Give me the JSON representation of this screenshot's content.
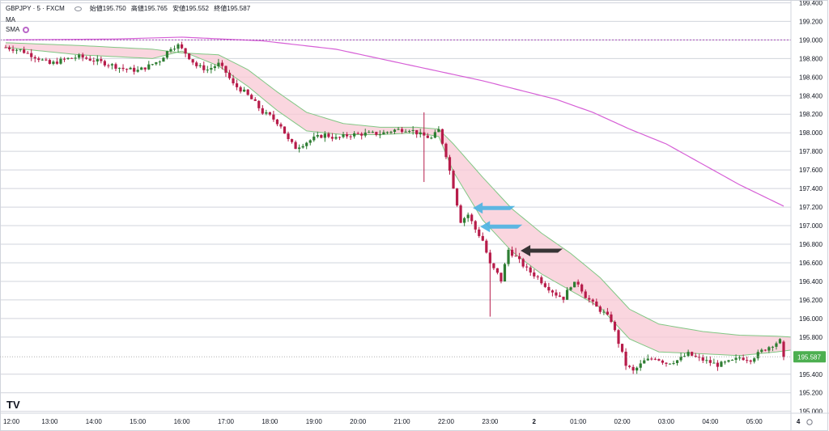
{
  "legend": {
    "symbol": "GBPJPY · 5 · FXCM",
    "open": "始値195.750",
    "high": "高値195.765",
    "low": "安値195.552",
    "close": "終値195.587",
    "indicator_ma": "MA",
    "indicator_sma": "SMA"
  },
  "price_axis": {
    "labels": [
      "199.400",
      "199.200",
      "199.000",
      "198.800",
      "198.600",
      "198.400",
      "198.200",
      "198.000",
      "197.800",
      "197.600",
      "197.400",
      "197.200",
      "197.000",
      "196.800",
      "196.600",
      "196.400",
      "196.200",
      "196.000",
      "195.800",
      "195.400",
      "195.200",
      "195.000"
    ],
    "current_price": "195.587",
    "current_price_color": "#4caf50"
  },
  "time_axis": {
    "labels": [
      "12:00",
      "13:00",
      "14:00",
      "15:00",
      "16:00",
      "17:00",
      "18:00",
      "19:00",
      "20:00",
      "21:00",
      "22:00",
      "23:00",
      "2",
      "01:00",
      "02:00",
      "03:00",
      "04:00",
      "05:00",
      "4"
    ]
  },
  "logo": "TV",
  "colors": {
    "bull": "#2e7d32",
    "bear": "#b71c4a",
    "ma_band": "#f8c8d4",
    "ma_edge": "#81c784",
    "sma_long": "#d65fd6",
    "reference_line": "#9c27b0",
    "arrow_blue": "#4ab3e2",
    "arrow_black": "#222222"
  },
  "annotations": [
    {
      "type": "arrow",
      "color": "blue",
      "pointing": "left",
      "at_price": 197.19
    },
    {
      "type": "arrow",
      "color": "blue",
      "pointing": "left",
      "at_price": 196.99
    },
    {
      "type": "arrow",
      "color": "black",
      "pointing": "left",
      "at_price": 196.73
    }
  ],
  "chart_data": {
    "type": "candlestick",
    "symbol": "GBPJPY",
    "timeframe": "5",
    "y_range": [
      194.98,
      199.43
    ],
    "reference_line": 199.0,
    "x_ticks": [
      {
        "label": "12:00",
        "bar": 0
      },
      {
        "label": "13:00",
        "bar": 12
      },
      {
        "label": "14:00",
        "bar": 24
      },
      {
        "label": "15:00",
        "bar": 36
      },
      {
        "label": "16:00",
        "bar": 48
      },
      {
        "label": "17:00",
        "bar": 60
      },
      {
        "label": "18:00",
        "bar": 72
      },
      {
        "label": "19:00",
        "bar": 84
      },
      {
        "label": "20:00",
        "bar": 96
      },
      {
        "label": "21:00",
        "bar": 108
      },
      {
        "label": "22:00",
        "bar": 120
      },
      {
        "label": "23:00",
        "bar": 132
      },
      {
        "label": "2",
        "bar": 144
      },
      {
        "label": "01:00",
        "bar": 156
      },
      {
        "label": "02:00",
        "bar": 168
      },
      {
        "label": "03:00",
        "bar": 180
      },
      {
        "label": "04:00",
        "bar": 192
      },
      {
        "label": "05:00",
        "bar": 204
      },
      {
        "label": "4",
        "bar": 216
      }
    ],
    "close_anchors": [
      [
        0,
        198.92
      ],
      [
        4,
        198.89
      ],
      [
        8,
        198.82
      ],
      [
        12,
        198.74
      ],
      [
        16,
        198.79
      ],
      [
        20,
        198.82
      ],
      [
        24,
        198.78
      ],
      [
        28,
        198.74
      ],
      [
        32,
        198.69
      ],
      [
        36,
        198.67
      ],
      [
        39,
        198.72
      ],
      [
        42,
        198.78
      ],
      [
        45,
        198.92
      ],
      [
        47,
        198.94
      ],
      [
        49,
        198.86
      ],
      [
        52,
        198.72
      ],
      [
        55,
        198.68
      ],
      [
        58,
        198.74
      ],
      [
        60,
        198.65
      ],
      [
        62,
        198.52
      ],
      [
        65,
        198.44
      ],
      [
        68,
        198.32
      ],
      [
        70,
        198.22
      ],
      [
        72,
        198.18
      ],
      [
        75,
        198.08
      ],
      [
        77,
        197.92
      ],
      [
        79,
        197.84
      ],
      [
        81,
        197.88
      ],
      [
        84,
        197.94
      ],
      [
        87,
        197.98
      ],
      [
        90,
        197.94
      ],
      [
        94,
        197.98
      ],
      [
        98,
        197.99
      ],
      [
        102,
        197.99
      ],
      [
        106,
        198.03
      ],
      [
        110,
        198.04
      ],
      [
        113,
        197.98
      ],
      [
        116,
        197.94
      ],
      [
        118,
        198.03
      ],
      [
        120,
        197.76
      ],
      [
        122,
        197.42
      ],
      [
        124,
        197.05
      ],
      [
        126,
        197.12
      ],
      [
        128,
        196.96
      ],
      [
        130,
        196.84
      ],
      [
        132,
        196.58
      ],
      [
        134,
        196.48
      ],
      [
        135,
        196.41
      ],
      [
        137,
        196.74
      ],
      [
        139,
        196.66
      ],
      [
        142,
        196.53
      ],
      [
        145,
        196.44
      ],
      [
        147,
        196.36
      ],
      [
        150,
        196.26
      ],
      [
        152,
        196.22
      ],
      [
        154,
        196.36
      ],
      [
        156,
        196.38
      ],
      [
        158,
        196.24
      ],
      [
        161,
        196.12
      ],
      [
        163,
        196.06
      ],
      [
        165,
        195.98
      ],
      [
        167,
        195.74
      ],
      [
        169,
        195.5
      ],
      [
        171,
        195.43
      ],
      [
        174,
        195.54
      ],
      [
        177,
        195.58
      ],
      [
        180,
        195.52
      ],
      [
        183,
        195.55
      ],
      [
        186,
        195.62
      ],
      [
        188,
        195.58
      ],
      [
        191,
        195.54
      ],
      [
        194,
        195.5
      ],
      [
        196,
        195.52
      ],
      [
        198,
        195.54
      ],
      [
        200,
        195.58
      ],
      [
        203,
        195.56
      ],
      [
        206,
        195.65
      ],
      [
        209,
        195.72
      ],
      [
        211,
        195.76
      ],
      [
        212,
        195.7
      ]
    ],
    "spikes": [
      {
        "bar": 114,
        "high": 198.22,
        "low": 197.47
      },
      {
        "bar": 132,
        "low": 196.02
      },
      {
        "bar": 139,
        "high": 196.76
      }
    ],
    "last_bar": {
      "open": 195.75,
      "high": 195.765,
      "low": 195.552,
      "close": 195.587
    },
    "series": [
      {
        "name": "MA",
        "type": "band",
        "edge_anchors": [
          [
            0,
            198.97,
            198.92
          ],
          [
            20,
            198.94,
            198.84
          ],
          [
            40,
            198.9,
            198.8
          ],
          [
            48,
            198.86,
            198.88
          ],
          [
            58,
            198.84,
            198.72
          ],
          [
            66,
            198.68,
            198.5
          ],
          [
            74,
            198.44,
            198.24
          ],
          [
            82,
            198.22,
            198.02
          ],
          [
            92,
            198.1,
            197.98
          ],
          [
            102,
            198.06,
            197.98
          ],
          [
            112,
            198.06,
            198.0
          ],
          [
            118,
            198.04,
            197.96
          ],
          [
            122,
            197.88,
            197.58
          ],
          [
            130,
            197.52,
            197.06
          ],
          [
            138,
            197.18,
            196.72
          ],
          [
            146,
            196.92,
            196.48
          ],
          [
            154,
            196.7,
            196.3
          ],
          [
            162,
            196.44,
            196.12
          ],
          [
            170,
            196.1,
            195.78
          ],
          [
            178,
            195.94,
            195.64
          ],
          [
            190,
            195.86,
            195.62
          ],
          [
            200,
            195.82,
            195.6
          ],
          [
            210,
            195.81,
            195.64
          ],
          [
            214,
            195.8,
            195.66
          ]
        ]
      },
      {
        "name": "SMA",
        "type": "line",
        "anchors": [
          [
            0,
            199.0
          ],
          [
            30,
            199.01
          ],
          [
            48,
            199.03
          ],
          [
            70,
            198.99
          ],
          [
            90,
            198.9
          ],
          [
            110,
            198.73
          ],
          [
            130,
            198.56
          ],
          [
            150,
            198.36
          ],
          [
            160,
            198.22
          ],
          [
            170,
            198.04
          ],
          [
            180,
            197.88
          ],
          [
            190,
            197.66
          ],
          [
            200,
            197.44
          ],
          [
            212,
            197.21
          ]
        ]
      }
    ]
  }
}
